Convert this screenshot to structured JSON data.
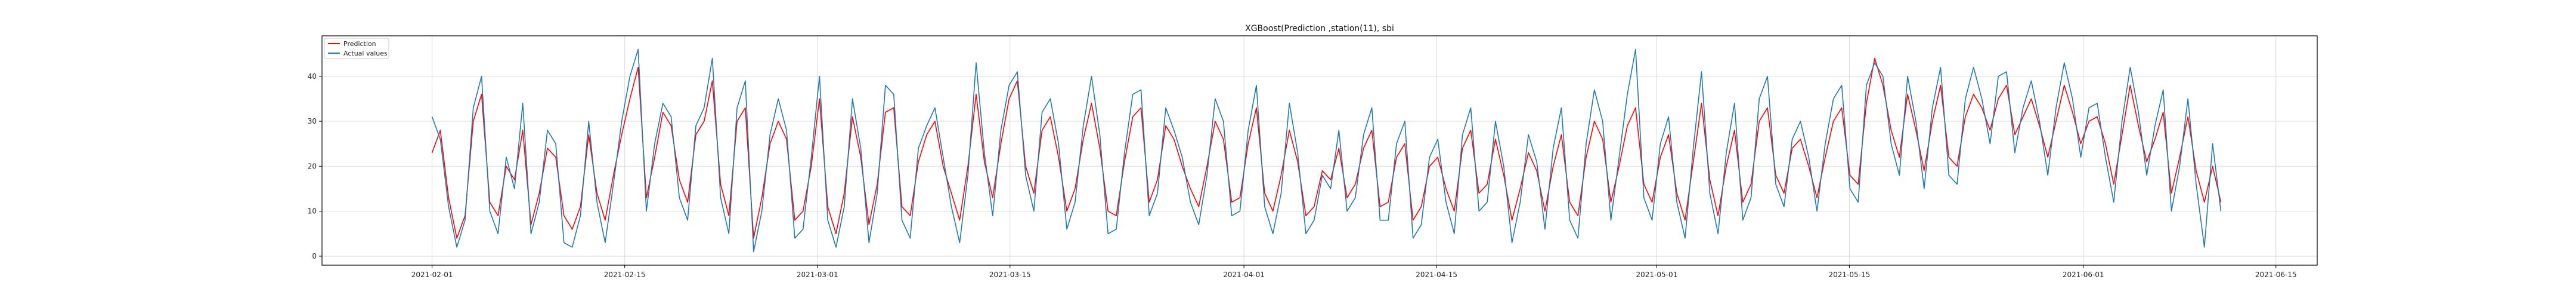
{
  "chart_data": {
    "type": "line",
    "title": "XGBoost(Prediction ,station(11), sbi",
    "xlabel": "",
    "ylabel": "",
    "xlim": [
      "2021-01-24",
      "2021-06-18"
    ],
    "ylim": [
      -2,
      49
    ],
    "grid": true,
    "legend": {
      "position": "top-left",
      "entries": [
        "Prediction",
        "Actual values"
      ]
    },
    "x_ticks": [
      "2021-02-01",
      "2021-02-15",
      "2021-03-01",
      "2021-03-15",
      "2021-04-01",
      "2021-04-15",
      "2021-05-01",
      "2021-05-15",
      "2021-06-01",
      "2021-06-15"
    ],
    "y_ticks": [
      0,
      10,
      20,
      30,
      40
    ],
    "x_range": [
      "2021-02-01",
      "2021-06-11"
    ],
    "series": [
      {
        "name": "Prediction",
        "color": "#ff0000",
        "values": [
          23,
          28,
          13,
          4,
          9,
          30,
          36,
          12,
          9,
          20,
          17,
          28,
          7,
          14,
          24,
          22,
          9,
          6,
          11,
          27,
          14,
          8,
          18,
          27,
          35,
          42,
          13,
          22,
          32,
          29,
          17,
          12,
          27,
          30,
          39,
          16,
          9,
          30,
          33,
          4,
          13,
          25,
          30,
          26,
          8,
          10,
          20,
          35,
          11,
          5,
          14,
          31,
          22,
          7,
          16,
          32,
          33,
          11,
          9,
          21,
          27,
          30,
          20,
          14,
          8,
          20,
          36,
          21,
          13,
          25,
          35,
          39,
          20,
          14,
          28,
          31,
          22,
          10,
          15,
          26,
          34,
          24,
          10,
          9,
          21,
          31,
          33,
          12,
          17,
          29,
          26,
          20,
          15,
          11,
          20,
          30,
          26,
          12,
          13,
          25,
          33,
          14,
          10,
          18,
          28,
          21,
          9,
          11,
          19,
          17,
          24,
          13,
          16,
          24,
          28,
          11,
          12,
          22,
          25,
          8,
          11,
          20,
          22,
          15,
          10,
          24,
          28,
          14,
          16,
          26,
          18,
          8,
          15,
          23,
          19,
          10,
          20,
          27,
          12,
          9,
          22,
          30,
          26,
          12,
          20,
          29,
          33,
          16,
          12,
          22,
          27,
          14,
          8,
          21,
          34,
          17,
          9,
          20,
          28,
          12,
          16,
          30,
          33,
          18,
          14,
          24,
          26,
          20,
          13,
          22,
          30,
          33,
          18,
          16,
          34,
          44,
          38,
          28,
          22,
          36,
          28,
          19,
          30,
          38,
          22,
          20,
          31,
          36,
          33,
          28,
          35,
          38,
          27,
          31,
          35,
          29,
          22,
          30,
          38,
          32,
          25,
          30,
          31,
          25,
          16,
          27,
          38,
          29,
          21,
          26,
          32,
          14,
          22,
          31,
          19,
          12,
          20,
          12
        ]
      },
      {
        "name": "Actual values",
        "color": "#1f77b4",
        "values": [
          31,
          26,
          11,
          2,
          8,
          33,
          40,
          10,
          5,
          22,
          15,
          34,
          5,
          12,
          28,
          25,
          3,
          2,
          9,
          30,
          12,
          3,
          16,
          30,
          40,
          46,
          10,
          25,
          34,
          31,
          13,
          8,
          29,
          33,
          44,
          13,
          5,
          33,
          39,
          1,
          10,
          27,
          35,
          28,
          4,
          6,
          22,
          40,
          8,
          2,
          11,
          35,
          24,
          3,
          14,
          38,
          36,
          8,
          4,
          24,
          29,
          33,
          22,
          11,
          3,
          18,
          43,
          23,
          9,
          28,
          38,
          41,
          18,
          10,
          32,
          35,
          25,
          6,
          12,
          29,
          40,
          27,
          5,
          6,
          23,
          36,
          37,
          9,
          14,
          33,
          28,
          22,
          12,
          7,
          18,
          35,
          30,
          9,
          10,
          28,
          38,
          11,
          5,
          14,
          34,
          23,
          5,
          8,
          18,
          15,
          28,
          10,
          13,
          27,
          33,
          8,
          8,
          25,
          30,
          4,
          7,
          22,
          26,
          12,
          5,
          27,
          33,
          10,
          12,
          30,
          20,
          3,
          12,
          27,
          21,
          6,
          24,
          33,
          8,
          4,
          25,
          37,
          30,
          8,
          22,
          36,
          46,
          13,
          8,
          25,
          31,
          12,
          4,
          24,
          41,
          14,
          5,
          23,
          34,
          8,
          13,
          35,
          40,
          16,
          11,
          26,
          30,
          22,
          10,
          25,
          35,
          38,
          15,
          12,
          38,
          43,
          40,
          25,
          18,
          40,
          30,
          15,
          33,
          42,
          18,
          16,
          35,
          42,
          35,
          25,
          40,
          41,
          23,
          33,
          39,
          30,
          18,
          33,
          43,
          35,
          22,
          33,
          34,
          22,
          12,
          30,
          42,
          32,
          18,
          29,
          37,
          10,
          20,
          35,
          16,
          2,
          25,
          10
        ]
      }
    ]
  }
}
